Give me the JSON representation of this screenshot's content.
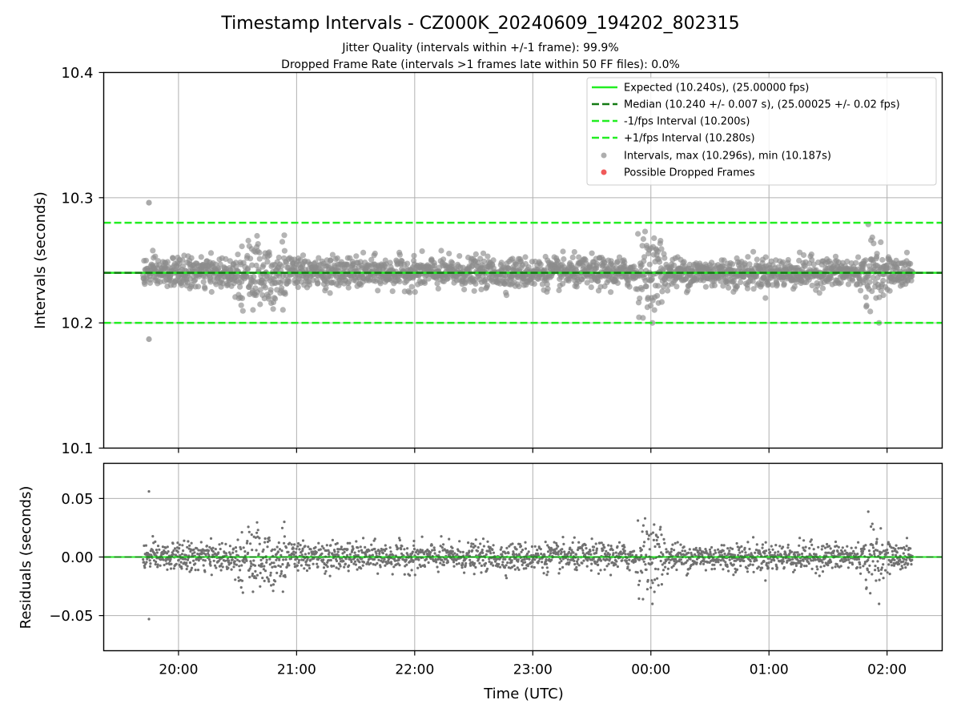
{
  "chart_data": [
    {
      "type": "scatter",
      "title": "Timestamp Intervals - CZ000K_20240609_194202_802315",
      "subtitle_lines": [
        "Jitter Quality (intervals within +/-1 frame): 99.9%",
        "Dropped Frame Rate (intervals >1 frames late within 50 FF files): 0.0%"
      ],
      "xlabel": "",
      "ylabel": "Intervals (seconds)",
      "ylim": [
        10.1,
        10.4
      ],
      "yticks": [
        10.1,
        10.2,
        10.3,
        10.4
      ],
      "ytick_labels": [
        "10.1",
        "10.2",
        "10.3",
        "10.4"
      ],
      "grid": true,
      "legend_position": "top-right",
      "legend": [
        {
          "label": "Expected (10.240s), (25.00000 fps)",
          "kind": "line",
          "style": "solid",
          "color": "#22ee22"
        },
        {
          "label": "Median (10.240 +/- 0.007 s), (25.00025 +/- 0.02 fps)",
          "kind": "line",
          "style": "dashed",
          "color": "#137a13"
        },
        {
          "label": "-1/fps Interval (10.200s)",
          "kind": "line",
          "style": "dashed",
          "color": "#22ee22"
        },
        {
          "label": "+1/fps Interval (10.280s)",
          "kind": "line",
          "style": "dashed",
          "color": "#22ee22"
        },
        {
          "label": "Intervals, max (10.296s), min (10.187s)",
          "kind": "marker",
          "color": "#8c8c8c"
        },
        {
          "label": "Possible Dropped Frames",
          "kind": "marker",
          "color": "#f05a5a"
        }
      ],
      "reference_lines": {
        "expected": 10.24,
        "median": 10.24,
        "minus_one_frame": 10.2,
        "plus_one_frame": 10.28
      },
      "extreme_points": [
        {
          "time": "19:45",
          "value": 10.296
        },
        {
          "time": "19:45",
          "value": 10.187
        }
      ],
      "time_range": [
        "19:42",
        "02:13"
      ],
      "scatter_spread": {
        "typical": 0.007,
        "max_abs": 0.04
      },
      "band_notes": "dense band of intervals centered on 10.240 s, wider excursions near 20:30-20:55, 23:55-00:05 and 01:50-01:55",
      "colors": {
        "points": "#8c8c8c",
        "expected": "#22ee22",
        "median": "#137a13",
        "dropped": "#f05a5a"
      }
    },
    {
      "type": "scatter",
      "xlabel": "Time (UTC)",
      "ylabel": "Residuals (seconds)",
      "ylim": [
        -0.08,
        0.08
      ],
      "yticks": [
        -0.05,
        0.0,
        0.05
      ],
      "ytick_labels": [
        "−0.05",
        "0.00",
        "0.05"
      ],
      "xticks": [
        "20:00",
        "21:00",
        "22:00",
        "23:00",
        "00:00",
        "01:00",
        "02:00"
      ],
      "grid": true,
      "zero_line_color": "#22ee22",
      "extreme_points": [
        {
          "time": "19:45",
          "value": 0.056
        },
        {
          "time": "19:45",
          "value": -0.053
        }
      ],
      "colors": {
        "points": "#707070",
        "zero_line": "#22ee22"
      }
    }
  ]
}
